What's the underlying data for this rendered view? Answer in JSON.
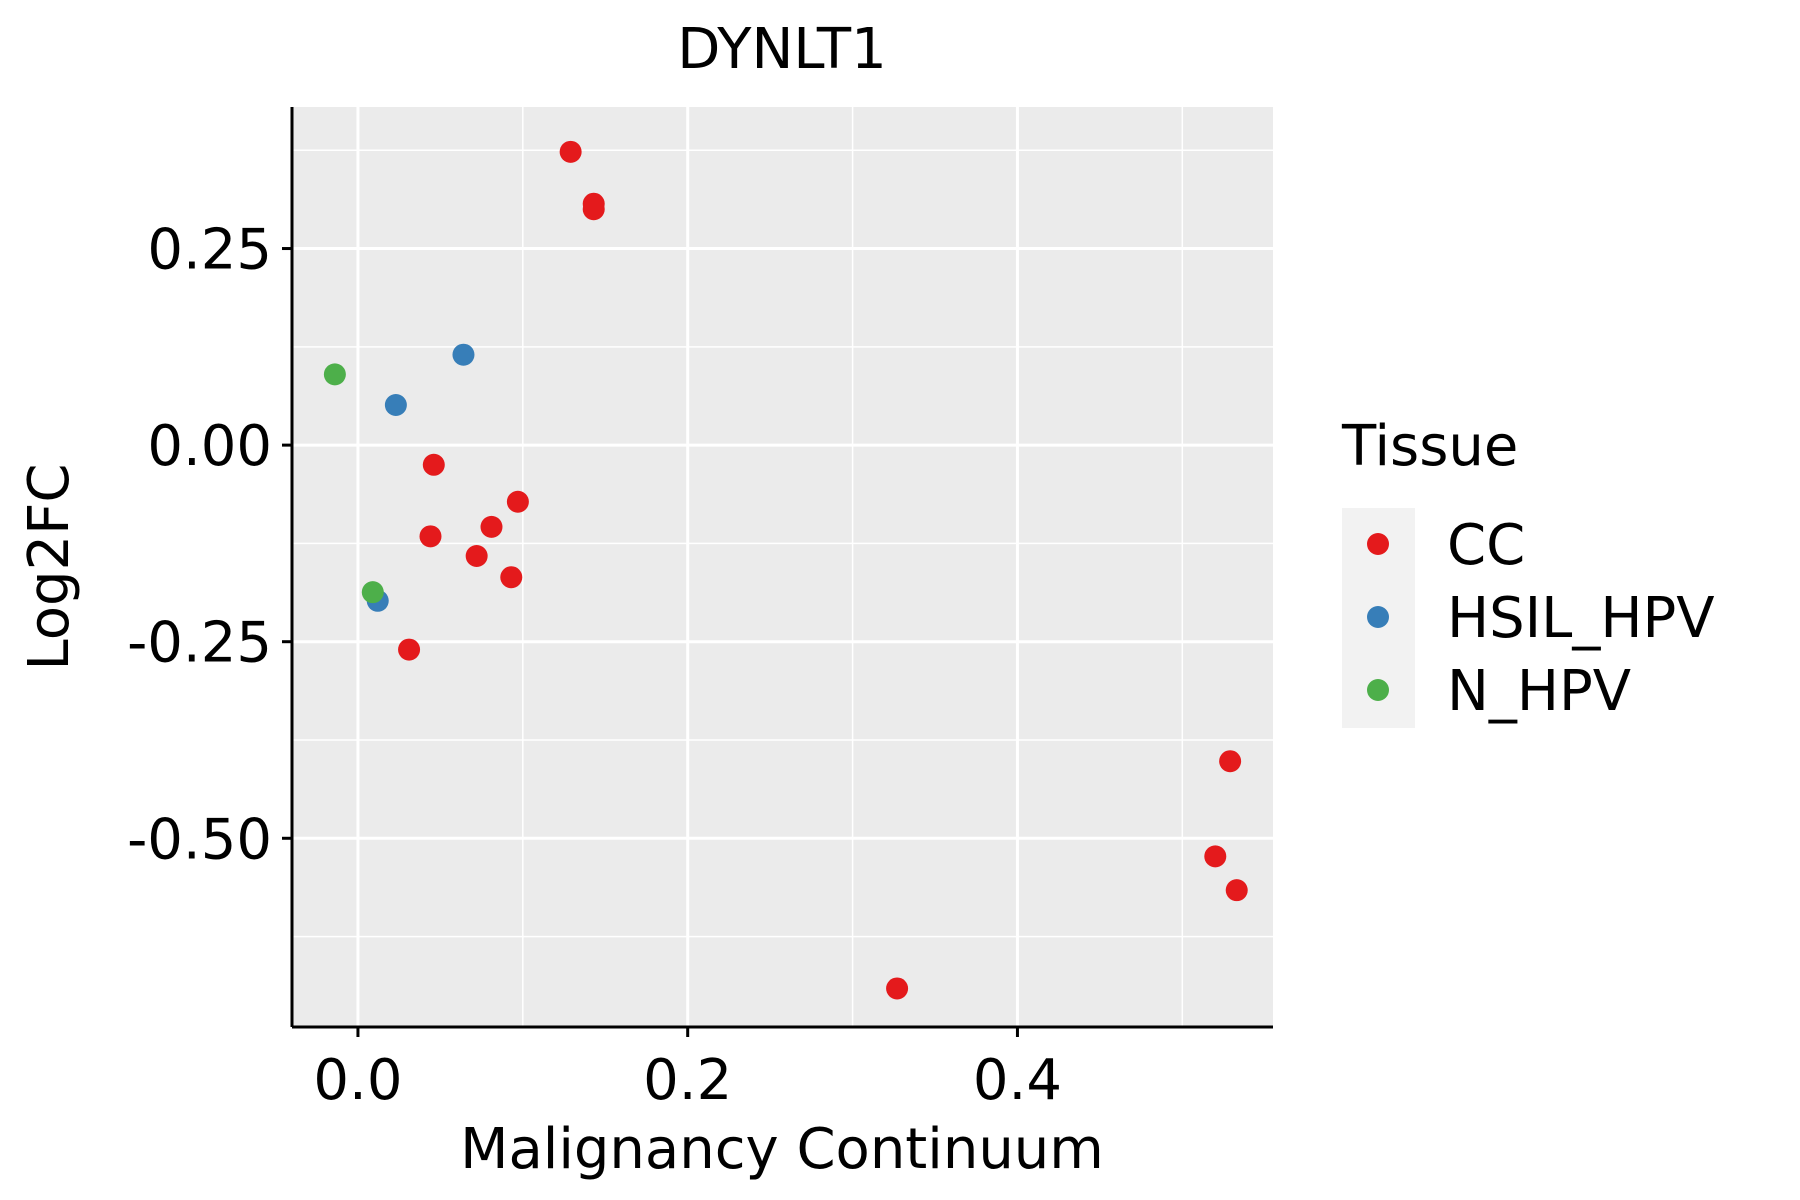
{
  "chart_data": {
    "type": "scatter",
    "title": "DYNLT1",
    "xlabel": "Malignancy Continuum",
    "ylabel": "Log2FC",
    "xlim": [
      -0.04,
      0.555
    ],
    "ylim": [
      -0.74,
      0.43
    ],
    "x_ticks": [
      0.0,
      0.2,
      0.4
    ],
    "x_tick_labels": [
      "0.0",
      "0.2",
      "0.4"
    ],
    "y_ticks": [
      -0.5,
      -0.25,
      0.0,
      0.25
    ],
    "y_tick_labels": [
      "-0.50",
      "-0.25",
      "0.00",
      "0.25"
    ],
    "grid": true,
    "legend": {
      "title": "Tissue",
      "position": "right",
      "entries": [
        {
          "label": "CC",
          "color": "#E41A1C"
        },
        {
          "label": "HSIL_HPV",
          "color": "#377EB8"
        },
        {
          "label": "N_HPV",
          "color": "#4DAF4A"
        }
      ]
    },
    "series": [
      {
        "name": "CC",
        "color": "#E41A1C",
        "points": [
          {
            "x": 0.129,
            "y": 0.373
          },
          {
            "x": 0.143,
            "y": 0.307
          },
          {
            "x": 0.143,
            "y": 0.3
          },
          {
            "x": 0.046,
            "y": -0.025
          },
          {
            "x": 0.097,
            "y": -0.072
          },
          {
            "x": 0.081,
            "y": -0.104
          },
          {
            "x": 0.044,
            "y": -0.116
          },
          {
            "x": 0.072,
            "y": -0.141
          },
          {
            "x": 0.093,
            "y": -0.168
          },
          {
            "x": 0.031,
            "y": -0.26
          },
          {
            "x": 0.529,
            "y": -0.402
          },
          {
            "x": 0.52,
            "y": -0.523
          },
          {
            "x": 0.533,
            "y": -0.566
          },
          {
            "x": 0.327,
            "y": -0.691
          }
        ]
      },
      {
        "name": "HSIL_HPV",
        "color": "#377EB8",
        "points": [
          {
            "x": 0.064,
            "y": 0.115
          },
          {
            "x": 0.023,
            "y": 0.051
          },
          {
            "x": 0.012,
            "y": -0.198
          }
        ]
      },
      {
        "name": "N_HPV",
        "color": "#4DAF4A",
        "points": [
          {
            "x": -0.014,
            "y": 0.09
          },
          {
            "x": 0.009,
            "y": -0.187
          }
        ]
      }
    ]
  },
  "colors": {
    "panel_background": "#EBEBEB",
    "grid": "#FFFFFF",
    "axis_line": "#000000"
  }
}
